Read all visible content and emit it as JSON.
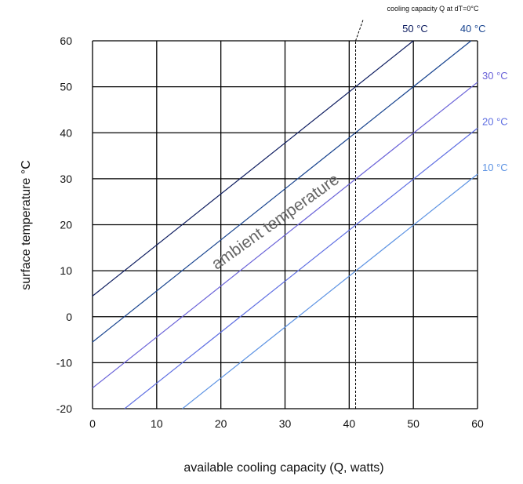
{
  "chart_data": {
    "type": "line",
    "title": "",
    "xlabel": "available cooling capacity (Q, watts)",
    "ylabel": "surface temperature °C",
    "xlim": [
      0,
      60
    ],
    "ylim": [
      -20,
      60
    ],
    "x_ticks": [
      0,
      10,
      20,
      30,
      40,
      50,
      60
    ],
    "x_tick_labels": [
      "0",
      "10",
      "20",
      "30",
      "40",
      "50",
      "60"
    ],
    "y_ticks": [
      -20,
      -10,
      0,
      10,
      20,
      30,
      40,
      50,
      60
    ],
    "y_tick_labels": [
      "-20",
      "-10",
      "0",
      "10",
      "20",
      "30",
      "40",
      "50",
      "60"
    ],
    "grid": true,
    "series": [
      {
        "name": "50 °C",
        "color": "#0b1a5e",
        "points": [
          [
            0,
            4.5
          ],
          [
            50,
            60
          ]
        ]
      },
      {
        "name": "40 °C",
        "color": "#18448f",
        "points": [
          [
            0,
            -5.5
          ],
          [
            59,
            60
          ]
        ]
      },
      {
        "name": "30 °C",
        "color": "#6a62d8",
        "points": [
          [
            0,
            -15.5
          ],
          [
            60,
            51
          ]
        ]
      },
      {
        "name": "20 °C",
        "color": "#5e6ee2",
        "points": [
          [
            5,
            -20
          ],
          [
            60,
            41
          ]
        ]
      },
      {
        "name": "10 °C",
        "color": "#5d93e3",
        "points": [
          [
            14,
            -20
          ],
          [
            60,
            31
          ]
        ]
      }
    ],
    "reference_line": {
      "label": "cooling capacity Q at dT=0°C",
      "x": 41,
      "style": "dashed"
    },
    "annotation": "ambient temperature"
  }
}
